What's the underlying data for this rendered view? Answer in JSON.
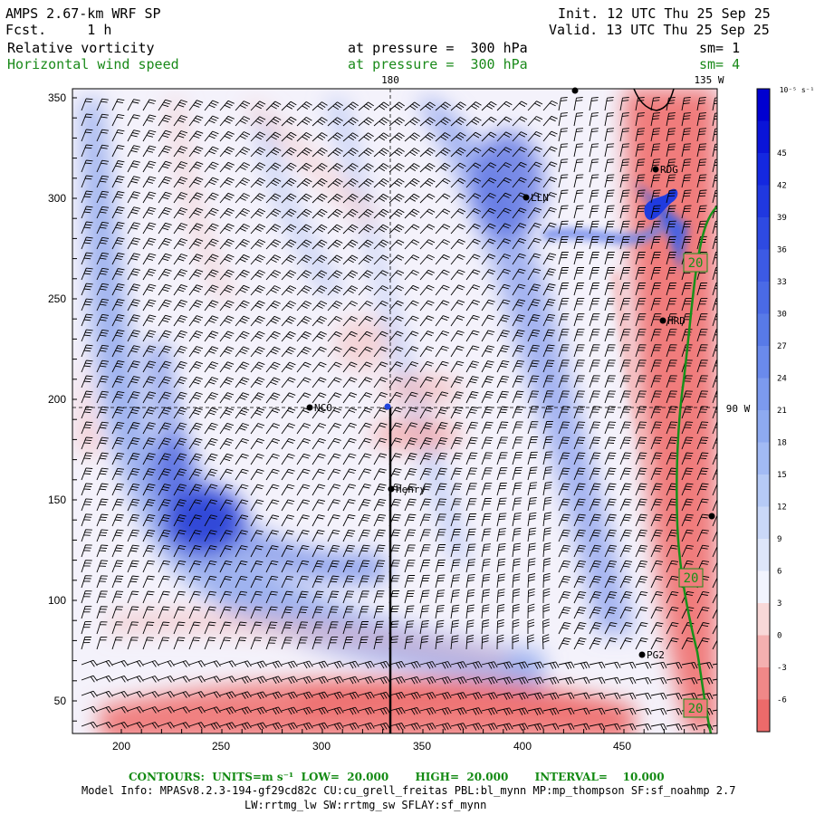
{
  "header": {
    "model": "AMPS 2.67-km WRF SP",
    "fcst": "Fcst.     1 h",
    "init": "Init. 12 UTC Thu 25 Sep 25",
    "valid": "Valid. 13 UTC Thu 25 Sep 25",
    "field1": "Relative vorticity",
    "field1_level": "at pressure =  300 hPa",
    "field1_sm": "sm= 1",
    "field2": "Horizontal wind speed",
    "field2_level": "at pressure =  300 hPa",
    "field2_sm": "sm= 4"
  },
  "map": {
    "x_ticks": [
      "200",
      "250",
      "300",
      "350",
      "400",
      "450"
    ],
    "y_ticks": [
      "350",
      "300",
      "250",
      "200",
      "150",
      "100",
      "50"
    ],
    "lon_label_top_left": "180",
    "lon_label_top_right": "135 W",
    "lat_label_right": "90 W",
    "stations": [
      {
        "name": "RDG"
      },
      {
        "name": "LLN"
      },
      {
        "name": "HRD"
      },
      {
        "name": "NCO"
      },
      {
        "name": "Henry"
      },
      {
        "name": "PG2"
      }
    ],
    "contour_labels": [
      "20",
      "20",
      "20"
    ]
  },
  "colorbar": {
    "unit": "10⁻⁵ s⁻¹",
    "labels": [
      "45",
      "42",
      "39",
      "36",
      "33",
      "30",
      "27",
      "24",
      "21",
      "18",
      "15",
      "12",
      "9",
      "6",
      "3",
      "0",
      "-3",
      "-6"
    ],
    "colors": [
      "#0000d0",
      "#0a14d8",
      "#1428e0",
      "#2038e0",
      "#2e4ae2",
      "#3c5ae4",
      "#4a6ae6",
      "#587ae8",
      "#6a8aec",
      "#7c9aee",
      "#8eaaf0",
      "#a2baf4",
      "#b6caf6",
      "#cad8f8",
      "#dee6fa",
      "#f2f4fe",
      "#f8d8d8",
      "#f4b0b0",
      "#f08888",
      "#ec6a6a"
    ]
  },
  "footer": {
    "contours": "CONTOURS:  UNITS=m s⁻¹  LOW=  20.000       HIGH=  20.000       INTERVAL=    10.000",
    "model_info": "Model Info: MPASv8.2.3-194-gf29cd82c CU:cu_grell_freitas PBL:bl_mynn MP:mp_thompson SF:sf_noahmp 2.7",
    "model_info2": "LW:rrtmg_lw SW:rrtmg_sw SFLAY:sf_mynn"
  }
}
